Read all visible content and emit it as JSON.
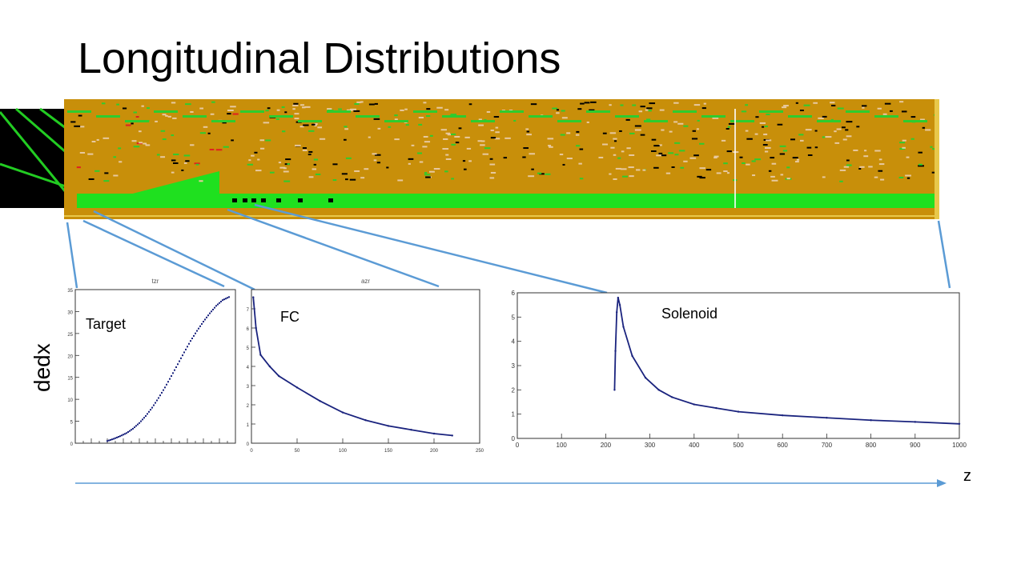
{
  "slide": {
    "title": "Longitudinal Distributions",
    "y_axis_label": "dedx",
    "z_axis_label": "z"
  },
  "event_display": {
    "description_colors": {
      "background": "#c88f0a",
      "tracks": "#2ecc2e",
      "hits": "#000000",
      "hot": "#e02020",
      "dots": "#e8c9a0",
      "beam": "#1fe01f"
    }
  },
  "panels": [
    {
      "label": "Target",
      "hist_title": "tzr"
    },
    {
      "label": "FC",
      "hist_title": "azr"
    },
    {
      "label": "Solenoid",
      "hist_title": ""
    }
  ],
  "chart_data": [
    {
      "type": "scatter",
      "title": "tzr",
      "xlim": [
        0,
        25
      ],
      "ylim": [
        0,
        35
      ],
      "yticks": [
        0,
        5,
        10,
        15,
        20,
        25,
        30,
        35
      ],
      "x": [
        5,
        6,
        7,
        8,
        9,
        10,
        11,
        12,
        13,
        14,
        15,
        16,
        17,
        18,
        19,
        20,
        21,
        22,
        23,
        24
      ],
      "y": [
        0.5,
        1.0,
        1.6,
        2.3,
        3.3,
        4.6,
        6.2,
        8.1,
        10.3,
        12.7,
        15.3,
        18.0,
        20.7,
        23.3,
        25.6,
        27.7,
        29.6,
        31.3,
        32.6,
        33.3
      ]
    },
    {
      "type": "line",
      "title": "azr",
      "xlim": [
        0,
        250
      ],
      "ylim": [
        0,
        8
      ],
      "xticks": [
        0,
        50,
        100,
        150,
        200,
        250
      ],
      "yticks": [
        0,
        1,
        2,
        3,
        4,
        5,
        6,
        7
      ],
      "x": [
        2,
        5,
        10,
        20,
        30,
        50,
        75,
        100,
        125,
        150,
        175,
        200,
        220
      ],
      "y": [
        7.6,
        6.0,
        4.6,
        4.0,
        3.5,
        2.9,
        2.2,
        1.6,
        1.2,
        0.9,
        0.7,
        0.5,
        0.4
      ]
    },
    {
      "type": "line",
      "title": "",
      "xlim": [
        0,
        1000
      ],
      "ylim": [
        0,
        6
      ],
      "xticks": [
        0,
        100,
        200,
        300,
        400,
        500,
        600,
        700,
        800,
        900,
        1000
      ],
      "yticks": [
        0,
        1,
        2,
        3,
        4,
        5,
        6
      ],
      "x": [
        220,
        222,
        225,
        228,
        232,
        240,
        260,
        290,
        320,
        350,
        400,
        450,
        500,
        600,
        700,
        800,
        900,
        1000
      ],
      "y": [
        2.0,
        3.6,
        5.2,
        5.8,
        5.5,
        4.6,
        3.4,
        2.5,
        2.0,
        1.7,
        1.4,
        1.25,
        1.1,
        0.95,
        0.85,
        0.75,
        0.68,
        0.6
      ]
    }
  ]
}
